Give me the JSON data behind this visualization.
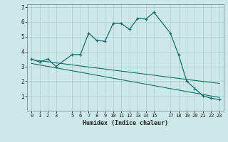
{
  "xlabel": "Humidex (Indice chaleur)",
  "bg_color": "#cce8e8",
  "grid_color": "#aacece",
  "line_color": "#1a6b6b",
  "xlim": [
    -0.5,
    23.5
  ],
  "ylim": [
    0,
    7.2
  ],
  "xticks": [
    0,
    1,
    2,
    3,
    5,
    6,
    7,
    8,
    9,
    10,
    11,
    12,
    13,
    14,
    15,
    17,
    18,
    19,
    20,
    21,
    22,
    23
  ],
  "yticks": [
    1,
    2,
    3,
    4,
    5,
    6
  ],
  "ytick_extra": 7,
  "line1_x": [
    0,
    1,
    2,
    3,
    5,
    6,
    7,
    8,
    9,
    10,
    11,
    12,
    13,
    14,
    15,
    17,
    18,
    19,
    20,
    21,
    22,
    23
  ],
  "line1_y": [
    3.5,
    3.3,
    3.5,
    3.0,
    3.8,
    3.8,
    5.25,
    4.75,
    4.7,
    5.9,
    5.9,
    5.5,
    6.25,
    6.2,
    6.65,
    5.25,
    3.8,
    2.0,
    1.5,
    1.0,
    0.85,
    0.75
  ],
  "line2_x": [
    0,
    5,
    10,
    15,
    20,
    23
  ],
  "line2_y": [
    3.45,
    3.1,
    2.75,
    2.4,
    2.05,
    1.85
  ],
  "line3_x": [
    0,
    5,
    10,
    15,
    20,
    23
  ],
  "line3_y": [
    3.2,
    2.7,
    2.2,
    1.7,
    1.2,
    0.9
  ]
}
